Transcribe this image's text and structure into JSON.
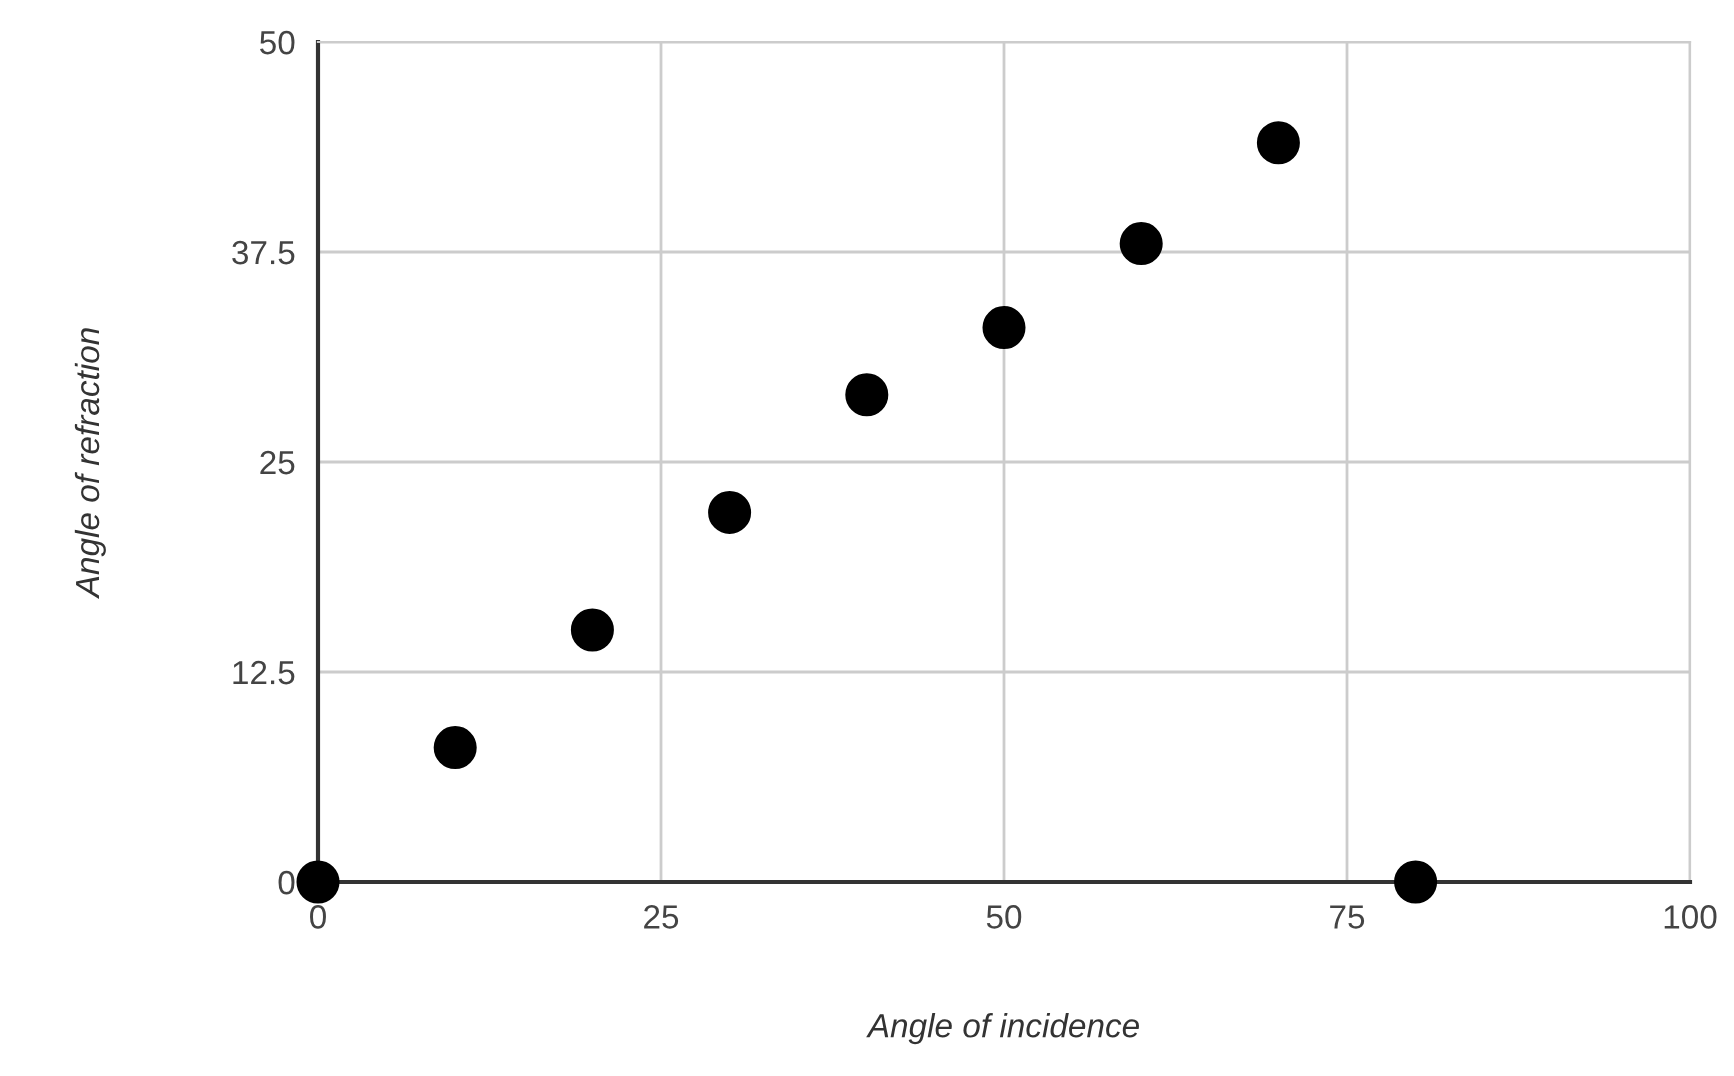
{
  "chart_data": {
    "type": "scatter",
    "xlabel": "Angle of incidence",
    "ylabel": "Angle of refraction",
    "x": [
      0,
      10,
      20,
      30,
      40,
      50,
      60,
      70,
      80
    ],
    "series": [
      {
        "color": "#000000",
        "values": [
          0,
          8,
          15,
          22,
          29,
          33,
          38,
          44,
          0
        ]
      }
    ],
    "xlim": [
      0,
      100
    ],
    "ylim": [
      0,
      50
    ],
    "xticks": [
      0,
      25,
      50,
      75,
      100
    ],
    "yticks": [
      0,
      12.5,
      25,
      37.5,
      50
    ],
    "grid": true,
    "marker": "circle",
    "legend": false
  }
}
